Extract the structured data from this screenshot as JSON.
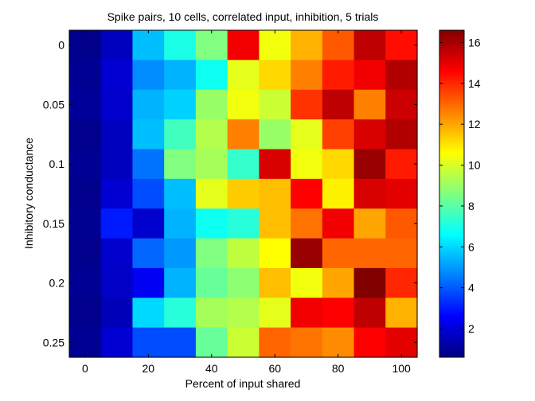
{
  "chart_data": {
    "type": "heatmap",
    "title": "Spike pairs, 10 cells, correlated input, inhibition, 5 trials",
    "xlabel": "Percent of input shared",
    "ylabel": "Inhibitory conductance",
    "x": [
      0,
      10,
      20,
      30,
      40,
      50,
      60,
      70,
      80,
      90,
      100
    ],
    "y": [
      0,
      0.025,
      0.05,
      0.075,
      0.1,
      0.125,
      0.15,
      0.175,
      0.2,
      0.225,
      0.25
    ],
    "xticks": [
      "0",
      "20",
      "40",
      "60",
      "80",
      "100"
    ],
    "yticks": [
      "0",
      "0.05",
      "0.1",
      "0.15",
      "0.2",
      "0.25"
    ],
    "colorbar": {
      "min": 0.6,
      "max": 16.6,
      "ticks": [
        "2",
        "4",
        "6",
        "8",
        "10",
        "12",
        "14",
        "16"
      ],
      "colormap": "jet"
    },
    "values": [
      [
        0.8,
        1.6,
        5.6,
        7.0,
        8.6,
        14.8,
        10.4,
        11.8,
        13.2,
        15.6,
        14.4
      ],
      [
        0.9,
        1.9,
        4.8,
        5.4,
        6.8,
        10.2,
        11.2,
        12.6,
        14.2,
        14.8,
        15.8
      ],
      [
        1.0,
        1.8,
        5.4,
        5.9,
        9.0,
        10.4,
        9.8,
        13.8,
        15.6,
        12.6,
        15.4
      ],
      [
        0.8,
        1.6,
        5.6,
        7.6,
        9.4,
        12.6,
        9.0,
        10.2,
        13.6,
        15.2,
        15.8
      ],
      [
        0.9,
        1.6,
        4.4,
        8.6,
        9.2,
        7.4,
        15.2,
        10.4,
        11.2,
        16.2,
        14.2
      ],
      [
        0.8,
        1.9,
        3.8,
        5.6,
        10.2,
        11.4,
        11.6,
        14.6,
        10.8,
        15.2,
        15.0
      ],
      [
        0.9,
        3.0,
        1.8,
        5.4,
        6.8,
        7.2,
        11.6,
        12.8,
        14.8,
        12.0,
        13.2
      ],
      [
        0.8,
        1.8,
        4.2,
        5.0,
        8.6,
        9.6,
        10.6,
        16.2,
        13.0,
        13.0,
        13.0
      ],
      [
        0.9,
        1.7,
        2.4,
        5.4,
        8.2,
        8.8,
        11.6,
        10.4,
        12.0,
        16.6,
        14.0
      ],
      [
        0.8,
        1.5,
        6.0,
        7.2,
        9.2,
        9.4,
        10.2,
        14.8,
        14.6,
        15.6,
        11.8
      ],
      [
        0.9,
        1.9,
        3.8,
        3.8,
        8.2,
        9.8,
        13.0,
        12.8,
        12.4,
        14.6,
        15.0
      ]
    ]
  }
}
